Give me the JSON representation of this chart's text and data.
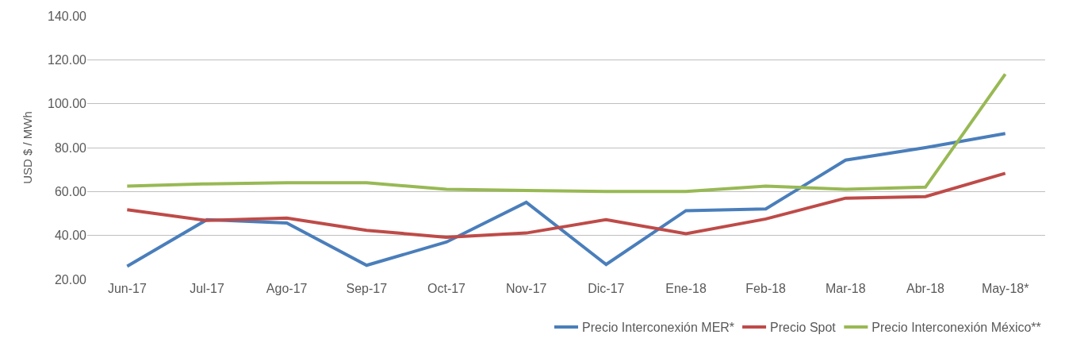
{
  "chart_data": {
    "type": "line",
    "ylabel": "USD $ / MWh",
    "categories": [
      "Jun-17",
      "Jul-17",
      "Ago-17",
      "Sep-17",
      "Oct-17",
      "Nov-17",
      "Dic-17",
      "Ene-18",
      "Feb-18",
      "Mar-18",
      "Abr-18",
      "May-18*"
    ],
    "series": [
      {
        "name": "Precio Interconexión MER*",
        "color": "#4a7ebb",
        "values": [
          26.0,
          47.2,
          45.7,
          26.4,
          37.0,
          55.1,
          26.8,
          51.3,
          52.1,
          74.3,
          80.0,
          86.4
        ]
      },
      {
        "name": "Precio Spot",
        "color": "#be4b48",
        "values": [
          51.7,
          46.8,
          47.9,
          42.3,
          39.2,
          41.1,
          47.2,
          40.8,
          47.5,
          57.0,
          57.7,
          68.3
        ]
      },
      {
        "name": "Precio Interconexión México**",
        "color": "#98b954",
        "values": [
          62.5,
          63.5,
          64.0,
          64.0,
          61.0,
          60.5,
          60.0,
          60.0,
          62.5,
          61.0,
          62.0,
          113.5
        ]
      }
    ],
    "ylim": [
      20,
      140
    ],
    "yticks": [
      {
        "value": 20,
        "label": "20.00"
      },
      {
        "value": 40,
        "label": "40.00"
      },
      {
        "value": 60,
        "label": "60.00"
      },
      {
        "value": 80,
        "label": "80.00"
      },
      {
        "value": 100,
        "label": "100.00"
      },
      {
        "value": 120,
        "label": "120.00"
      },
      {
        "value": 140,
        "label": "140.00"
      }
    ],
    "grid": "y",
    "legend": "bottom right",
    "marker": "none",
    "line_style": "solid"
  }
}
